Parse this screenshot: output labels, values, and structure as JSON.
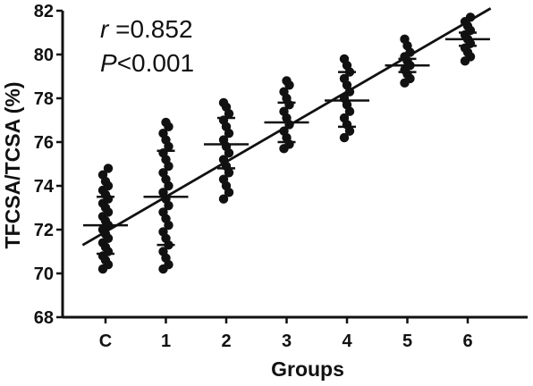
{
  "chart_data": {
    "type": "scatter",
    "title": "",
    "xlabel": "Groups",
    "ylabel": "TFCSA/TCSA (%)",
    "categories": [
      "C",
      "1",
      "2",
      "3",
      "4",
      "5",
      "6"
    ],
    "ylim": [
      68,
      82
    ],
    "yticks": [
      "68",
      "70",
      "72",
      "74",
      "76",
      "78",
      "80",
      "82"
    ],
    "grid": false,
    "legend": "none",
    "annotations": {
      "r_symbol": "r",
      "r_value": " =0.852",
      "p_symbol": "P",
      "p_value": "<0.001"
    },
    "groups": [
      {
        "category": "C",
        "mean": 72.2,
        "sd_upper": 73.5,
        "sd_lower": 70.9,
        "points": [
          70.2,
          70.4,
          70.6,
          70.8,
          71.0,
          71.2,
          71.4,
          71.6,
          71.8,
          72.0,
          72.2,
          72.4,
          72.6,
          72.8,
          73.0,
          73.2,
          73.4,
          73.6,
          73.8,
          74.0,
          74.2,
          74.5,
          74.8
        ]
      },
      {
        "category": "1",
        "mean": 73.5,
        "sd_upper": 75.6,
        "sd_lower": 71.3,
        "points": [
          70.2,
          70.4,
          70.7,
          71.0,
          71.3,
          71.6,
          71.9,
          72.2,
          72.5,
          72.8,
          73.1,
          73.4,
          73.7,
          74.0,
          74.3,
          74.6,
          74.9,
          75.2,
          75.5,
          75.8,
          76.1,
          76.4,
          76.7,
          76.9
        ]
      },
      {
        "category": "2",
        "mean": 75.9,
        "sd_upper": 77.1,
        "sd_lower": 74.8,
        "points": [
          73.4,
          73.7,
          74.0,
          74.3,
          74.6,
          74.9,
          75.2,
          75.5,
          75.8,
          76.1,
          76.4,
          76.7,
          77.0,
          77.3,
          77.6,
          77.8
        ]
      },
      {
        "category": "3",
        "mean": 76.9,
        "sd_upper": 77.8,
        "sd_lower": 76.0,
        "points": [
          75.7,
          75.9,
          76.2,
          76.5,
          76.8,
          77.1,
          77.4,
          77.7,
          78.0,
          78.3,
          78.6,
          78.8
        ]
      },
      {
        "category": "4",
        "mean": 77.9,
        "sd_upper": 79.2,
        "sd_lower": 76.7,
        "points": [
          76.2,
          76.5,
          76.8,
          77.1,
          77.4,
          77.7,
          78.0,
          78.3,
          78.6,
          78.9,
          79.2,
          79.5,
          79.8
        ]
      },
      {
        "category": "5",
        "mean": 79.5,
        "sd_upper": 79.8,
        "sd_lower": 79.2,
        "points": [
          78.7,
          78.9,
          79.1,
          79.3,
          79.5,
          79.7,
          79.9,
          80.1,
          80.4,
          80.7
        ]
      },
      {
        "category": "6",
        "mean": 80.7,
        "sd_upper": 81.0,
        "sd_lower": 80.4,
        "points": [
          79.7,
          79.9,
          80.1,
          80.3,
          80.5,
          80.7,
          80.9,
          81.1,
          81.3,
          81.5,
          81.7
        ]
      }
    ],
    "regression": {
      "x_start": "C",
      "y_start": 71.9,
      "x_end": "6",
      "y_end": 81.5
    }
  }
}
